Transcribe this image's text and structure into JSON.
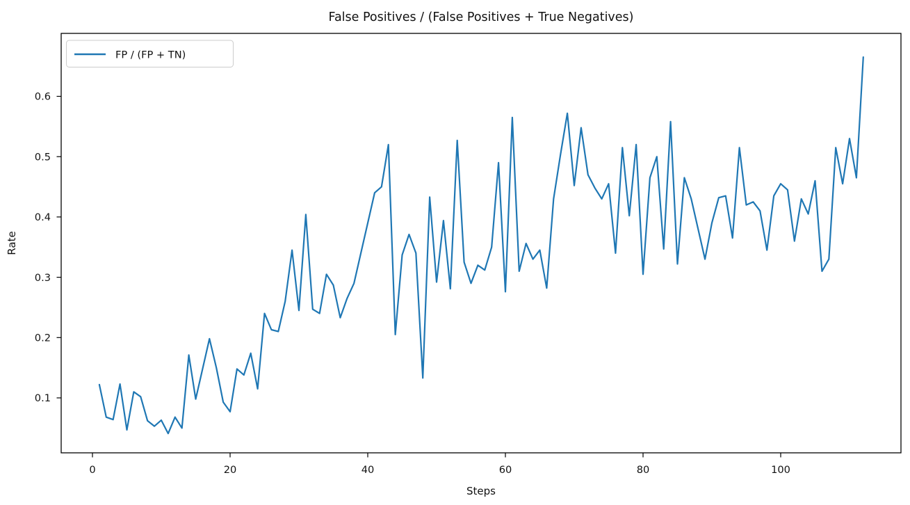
{
  "chart_data": {
    "type": "line",
    "title": "False Positives / (False Positives + True Negatives)",
    "xlabel": "Steps",
    "ylabel": "Rate",
    "grid": false,
    "background_color": "#ffffff",
    "spine_color": "#000000",
    "xlim": [
      -4.55,
      117.5
    ],
    "ylim": [
      0.009,
      0.705
    ],
    "x_ticks": [
      0,
      20,
      40,
      60,
      80,
      100
    ],
    "y_ticks": [
      0.1,
      0.2,
      0.3,
      0.4,
      0.5,
      0.6
    ],
    "legend": {
      "position": "upper left",
      "entries": [
        {
          "label": "FP / (FP + TN)",
          "color": "#1f77b4"
        }
      ]
    },
    "series": [
      {
        "name": "FP / (FP + TN)",
        "color": "#1f77b4",
        "x": [
          1,
          2,
          3,
          4,
          5,
          6,
          7,
          8,
          9,
          10,
          11,
          12,
          13,
          14,
          15,
          16,
          17,
          18,
          19,
          20,
          21,
          22,
          23,
          24,
          25,
          26,
          27,
          28,
          29,
          30,
          31,
          32,
          33,
          34,
          35,
          36,
          37,
          38,
          39,
          40,
          41,
          42,
          43,
          44,
          45,
          46,
          47,
          48,
          49,
          50,
          51,
          52,
          53,
          54,
          55,
          56,
          57,
          58,
          59,
          60,
          61,
          62,
          63,
          64,
          65,
          66,
          67,
          68,
          69,
          70,
          71,
          72,
          73,
          74,
          75,
          76,
          77,
          78,
          79,
          80,
          81,
          82,
          83,
          84,
          85,
          86,
          87,
          88,
          89,
          90,
          91,
          92,
          93,
          94,
          95,
          96,
          97,
          98,
          99,
          100,
          101,
          102,
          103,
          104,
          105,
          106,
          107,
          108,
          109,
          110,
          111,
          112
        ],
        "y": [
          0.122,
          0.068,
          0.064,
          0.123,
          0.047,
          0.11,
          0.102,
          0.062,
          0.053,
          0.063,
          0.041,
          0.068,
          0.05,
          0.171,
          0.098,
          0.148,
          0.198,
          0.15,
          0.093,
          0.077,
          0.148,
          0.138,
          0.174,
          0.115,
          0.24,
          0.213,
          0.21,
          0.26,
          0.345,
          0.245,
          0.404,
          0.247,
          0.24,
          0.305,
          0.287,
          0.233,
          0.265,
          0.29,
          0.34,
          0.39,
          0.44,
          0.45,
          0.52,
          0.205,
          0.337,
          0.371,
          0.34,
          0.133,
          0.433,
          0.292,
          0.394,
          0.281,
          0.527,
          0.325,
          0.29,
          0.32,
          0.312,
          0.35,
          0.49,
          0.276,
          0.565,
          0.31,
          0.356,
          0.33,
          0.345,
          0.282,
          0.43,
          0.503,
          0.572,
          0.452,
          0.548,
          0.47,
          0.448,
          0.43,
          0.455,
          0.34,
          0.515,
          0.402,
          0.52,
          0.305,
          0.465,
          0.5,
          0.347,
          0.558,
          0.322,
          0.465,
          0.43,
          0.38,
          0.33,
          0.39,
          0.432,
          0.435,
          0.365,
          0.515,
          0.42,
          0.425,
          0.41,
          0.345,
          0.435,
          0.455,
          0.445,
          0.36,
          0.43,
          0.405,
          0.46,
          0.31,
          0.33,
          0.515,
          0.455,
          0.53,
          0.465,
          0.665
        ]
      }
    ]
  }
}
